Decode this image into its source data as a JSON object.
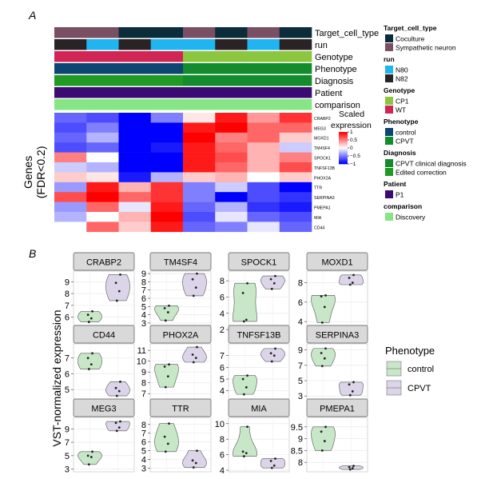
{
  "panel_labels": {
    "a": "A",
    "b": "B"
  },
  "heatmap": {
    "columns": 8,
    "annotation_rows": [
      {
        "label": "Target_cell_type",
        "values": [
          "Sympathetic neuron",
          "Sympathetic neuron",
          "Coculture",
          "Coculture",
          "Sympathetic neuron",
          "Coculture",
          "Sympathetic neuron",
          "Coculture"
        ]
      },
      {
        "label": "run",
        "values": [
          "N82",
          "N80",
          "N82",
          "N80",
          "N80",
          "N82",
          "N80",
          "N82"
        ]
      },
      {
        "label": "Genotype",
        "values": [
          "WT",
          "WT",
          "WT",
          "WT",
          "CP1",
          "CP1",
          "CP1",
          "CP1"
        ]
      },
      {
        "label": "Phenotype",
        "values": [
          "control",
          "control",
          "control",
          "control",
          "CPVT",
          "CPVT",
          "CPVT",
          "CPVT"
        ]
      },
      {
        "label": "Diagnosis",
        "values": [
          "Edited correction",
          "Edited correction",
          "Edited correction",
          "Edited correction",
          "CPVT clinical diagnosis",
          "CPVT clinical diagnosis",
          "CPVT clinical diagnosis",
          "CPVT clinical diagnosis"
        ]
      },
      {
        "label": "Patient",
        "values": [
          "P1",
          "P1",
          "P1",
          "P1",
          "P1",
          "P1",
          "P1",
          "P1"
        ]
      },
      {
        "label": "comparison",
        "values": [
          "Discovery",
          "Discovery",
          "Discovery",
          "Discovery",
          "Discovery",
          "Discovery",
          "Discovery",
          "Discovery"
        ]
      }
    ],
    "annotation_colors": {
      "Coculture": "#0b2c3b",
      "Sympathetic neuron": "#7a4f63",
      "N80": "#20b5f0",
      "N82": "#2a2326",
      "CP1": "#8cc63e",
      "WT": "#d12655",
      "control": "#0d4573",
      "CPVT": "#138c2d",
      "CPVT clinical diagnosis": "#138c2d",
      "Edited correction": "#1f9a22",
      "P1": "#3c0a73",
      "Discovery": "#86e684"
    },
    "genes": [
      "CRABP2",
      "MEG3",
      "MOXD1",
      "TM4SF4",
      "SPOCK1",
      "TNFSF13B",
      "PHOX2A",
      "TTR",
      "SERPINA3",
      "PMEPA1",
      "MIA",
      "CD44"
    ],
    "matrix": [
      [
        -0.6,
        -0.7,
        -1.0,
        -0.5,
        0.1,
        0.9,
        0.4,
        0.8
      ],
      [
        -0.7,
        -0.5,
        -1.0,
        -1.0,
        0.9,
        1.0,
        0.6,
        0.6
      ],
      [
        -0.6,
        -0.3,
        -1.0,
        -1.0,
        1.0,
        0.5,
        0.6,
        0.2
      ],
      [
        -0.7,
        -0.6,
        -1.0,
        -0.9,
        0.9,
        0.6,
        0.3,
        -0.2
      ],
      [
        0.5,
        0.0,
        -1.0,
        -1.0,
        0.9,
        0.7,
        0.3,
        0.5
      ],
      [
        -0.2,
        -0.3,
        -1.0,
        -1.0,
        0.9,
        0.6,
        0.3,
        0.7
      ],
      [
        0.2,
        0.1,
        -0.9,
        -0.3,
        0.2,
        0.3,
        0.0,
        0.2
      ],
      [
        -0.4,
        0.9,
        0.3,
        0.8,
        -0.5,
        -0.2,
        -0.7,
        -1.0
      ],
      [
        0.7,
        1.0,
        0.6,
        0.8,
        -0.5,
        -1.0,
        -0.7,
        -0.8
      ],
      [
        -0.4,
        0.6,
        -0.1,
        0.9,
        -0.6,
        -0.3,
        -0.8,
        -0.9
      ],
      [
        -0.3,
        0.0,
        0.3,
        1.0,
        -0.7,
        -0.1,
        -0.6,
        -0.7
      ],
      [
        0.0,
        0.6,
        0.2,
        0.9,
        -0.6,
        -0.5,
        -0.1,
        -0.6
      ]
    ],
    "y_axis_label": [
      "Genes",
      "(FDR<0.2)"
    ],
    "colorbar": {
      "title": [
        "Scaled",
        "expression"
      ],
      "ticks": [
        "1",
        "0.5",
        "0",
        "−0.5",
        "−1"
      ],
      "tick_values": [
        1,
        0.5,
        0,
        -0.5,
        -1
      ]
    },
    "legend": [
      {
        "title": "Target_cell_type",
        "items": [
          "Coculture",
          "Sympathetic neuron"
        ]
      },
      {
        "title": "run",
        "items": [
          "N80",
          "N82"
        ]
      },
      {
        "title": "Genotype",
        "items": [
          "CP1",
          "WT"
        ]
      },
      {
        "title": "Phenotype",
        "items": [
          "control",
          "CPVT"
        ]
      },
      {
        "title": "Diagnosis",
        "items": [
          "CPVT clinical diagnosis",
          "Edited correction"
        ]
      },
      {
        "title": "Patient",
        "items": [
          "P1"
        ]
      },
      {
        "title": "comparison",
        "items": [
          "Discovery"
        ]
      }
    ]
  },
  "chart_data": [
    {
      "type": "heatmap",
      "rows": [
        "CRABP2",
        "MEG3",
        "MOXD1",
        "TM4SF4",
        "SPOCK1",
        "TNFSF13B",
        "PHOX2A",
        "TTR",
        "SERPINA3",
        "PMEPA1",
        "MIA",
        "CD44"
      ],
      "columns": 8,
      "value_range": [
        -1,
        1
      ],
      "legend_title": "Scaled expression"
    },
    {
      "type": "violin",
      "y_label": "VST-normalized expression",
      "groups": [
        "control",
        "CPVT"
      ],
      "colors": {
        "control": "#c8e6c8",
        "CPVT": "#dcd4e8"
      },
      "legend_title": "Phenotype",
      "panels": [
        {
          "gene": "CRABP2",
          "ticks": [
            6,
            7,
            8,
            9
          ],
          "ylim": [
            5.3,
            9.9
          ],
          "control": [
            5.6,
            5.9,
            6.2,
            6.5
          ],
          "CPVT": [
            7.4,
            8.2,
            8.9,
            9.6
          ]
        },
        {
          "gene": "TM4SF4",
          "ticks": [
            3,
            4,
            5,
            6,
            7,
            8,
            9
          ],
          "ylim": [
            2.7,
            9.3
          ],
          "control": [
            3.3,
            4.3,
            4.8,
            5.1
          ],
          "CPVT": [
            6.3,
            7.3,
            8.3,
            9.0
          ]
        },
        {
          "gene": "SPOCK1",
          "ticks": [
            2,
            4,
            6,
            8
          ],
          "ylim": [
            2.5,
            9.2
          ],
          "control": [
            3.0,
            3.2,
            6.5,
            7.7
          ],
          "CPVT": [
            7.0,
            7.7,
            8.2,
            8.6
          ]
        },
        {
          "gene": "MOXD1",
          "ticks": [
            4,
            6,
            8
          ],
          "ylim": [
            3.6,
            9.2
          ],
          "control": [
            3.9,
            5.5,
            6.6,
            6.7
          ],
          "CPVT": [
            7.8,
            8.0,
            8.5,
            8.8
          ]
        },
        {
          "gene": "CD44",
          "ticks": [
            5,
            6,
            7
          ],
          "ylim": [
            4.4,
            7.9
          ],
          "control": [
            6.3,
            6.6,
            7.0,
            7.3
          ],
          "CPVT": [
            4.6,
            4.9,
            5.1,
            5.5
          ]
        },
        {
          "gene": "PHOX2A",
          "ticks": [
            7,
            8,
            9,
            10,
            11
          ],
          "ylim": [
            6.5,
            11.6
          ],
          "control": [
            7.6,
            8.6,
            9.5,
            9.7
          ],
          "CPVT": [
            9.9,
            10.3,
            10.6,
            11.3
          ]
        },
        {
          "gene": "TNFSF13B",
          "ticks": [
            4,
            5,
            6,
            7
          ],
          "ylim": [
            3.3,
            8.0
          ],
          "control": [
            3.7,
            4.3,
            5.0,
            5.3
          ],
          "CPVT": [
            6.5,
            7.0,
            7.2,
            7.6
          ]
        },
        {
          "gene": "SERPINA3",
          "ticks": [
            3,
            5,
            7,
            9
          ],
          "ylim": [
            2.6,
            9.8
          ],
          "control": [
            6.9,
            7.9,
            8.6,
            9.2
          ],
          "CPVT": [
            3.1,
            3.6,
            4.5,
            4.8
          ]
        },
        {
          "gene": "MEG3",
          "ticks": [
            3,
            5,
            7,
            9
          ],
          "ylim": [
            2.6,
            10.7
          ],
          "control": [
            3.7,
            4.8,
            5.0,
            5.6
          ],
          "CPVT": [
            8.7,
            9.2,
            9.9,
            10.1
          ]
        },
        {
          "gene": "TTR",
          "ticks": [
            3,
            4,
            5,
            6,
            7,
            8
          ],
          "ylim": [
            2.6,
            8.8
          ],
          "control": [
            4.9,
            5.8,
            6.6,
            8.1
          ],
          "CPVT": [
            3.1,
            3.6,
            3.9,
            5.0
          ]
        },
        {
          "gene": "MIA",
          "ticks": [
            4,
            6,
            8,
            10
          ],
          "ylim": [
            3.8,
            10.8
          ],
          "control": [
            5.8,
            6.2,
            6.4,
            9.6
          ],
          "CPVT": [
            4.3,
            4.6,
            5.2,
            5.5
          ]
        },
        {
          "gene": "PMEPA1",
          "ticks": [
            8.0,
            8.5,
            9.0,
            9.5
          ],
          "ylim": [
            7.6,
            9.9
          ],
          "control": [
            8.5,
            8.9,
            9.3,
            9.5
          ],
          "CPVT": [
            7.7,
            7.75,
            7.8,
            7.85
          ]
        }
      ]
    }
  ]
}
